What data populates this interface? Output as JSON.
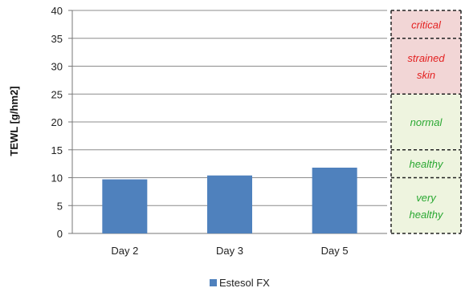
{
  "chart_data": {
    "type": "bar",
    "categories": [
      "Day 2",
      "Day 3",
      "Day 5"
    ],
    "series": [
      {
        "name": "Estesol FX",
        "values": [
          9.7,
          10.4,
          11.8
        ],
        "color": "#4f81bd"
      }
    ],
    "ylabel": "TEWL [g/hm2]",
    "ylim": [
      0,
      40
    ],
    "yticks": [
      0,
      5,
      10,
      15,
      20,
      25,
      30,
      35,
      40
    ],
    "grid": true,
    "legend": "bottom-center",
    "zones": [
      {
        "label_lines": [
          "critical"
        ],
        "range": [
          35,
          40
        ],
        "fill": "#f2d6d6",
        "text_color": "#e32020"
      },
      {
        "label_lines": [
          "strained",
          "skin"
        ],
        "range": [
          25,
          35
        ],
        "fill": "#f2d6d6",
        "text_color": "#e32020"
      },
      {
        "label_lines": [
          "normal"
        ],
        "range": [
          15,
          25
        ],
        "fill": "#eef4df",
        "text_color": "#2aa832"
      },
      {
        "label_lines": [
          "healthy"
        ],
        "range": [
          10,
          15
        ],
        "fill": "#eef4df",
        "text_color": "#2aa832"
      },
      {
        "label_lines": [
          "very",
          "healthy"
        ],
        "range": [
          0,
          10
        ],
        "fill": "#eef4df",
        "text_color": "#2aa832"
      }
    ]
  }
}
